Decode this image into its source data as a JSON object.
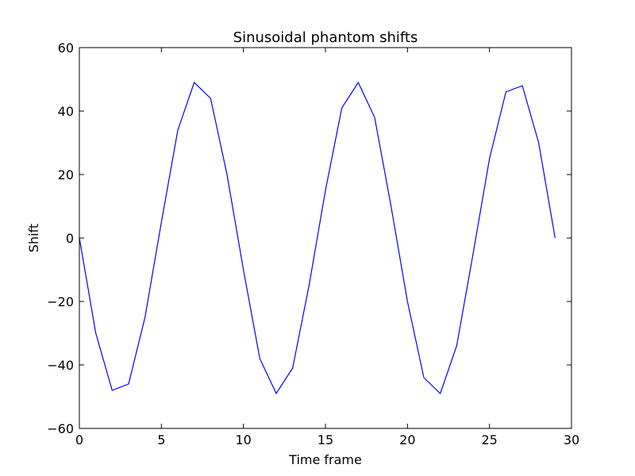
{
  "chart_data": {
    "type": "line",
    "title": "Sinusoidal phantom shifts",
    "xlabel": "Time frame",
    "ylabel": "Shift",
    "xlim": [
      0,
      30
    ],
    "ylim": [
      -60,
      60
    ],
    "grid": false,
    "x_ticks": [
      0,
      5,
      10,
      15,
      20,
      25,
      30
    ],
    "y_ticks": [
      -60,
      -40,
      -20,
      0,
      20,
      40,
      60
    ],
    "x_tick_labels": [
      "0",
      "5",
      "10",
      "15",
      "20",
      "25",
      "30"
    ],
    "y_tick_labels": [
      "−60",
      "−40",
      "−20",
      "0",
      "20",
      "40",
      "60"
    ],
    "series": [
      {
        "color": "#0000ff",
        "x": [
          0,
          1,
          2,
          3,
          4,
          5,
          6,
          7,
          8,
          9,
          10,
          11,
          12,
          13,
          14,
          15,
          16,
          17,
          18,
          19,
          20,
          21,
          22,
          23,
          24,
          25,
          26,
          27,
          28,
          29
        ],
        "values": [
          0,
          -30,
          -48,
          -46,
          -25,
          5,
          34,
          49,
          44,
          20,
          -10,
          -38,
          -49,
          -41,
          -15,
          15,
          41,
          49,
          38,
          10,
          -20,
          -44,
          -49,
          -34,
          -5,
          25,
          46,
          48,
          30,
          0
        ]
      }
    ]
  }
}
